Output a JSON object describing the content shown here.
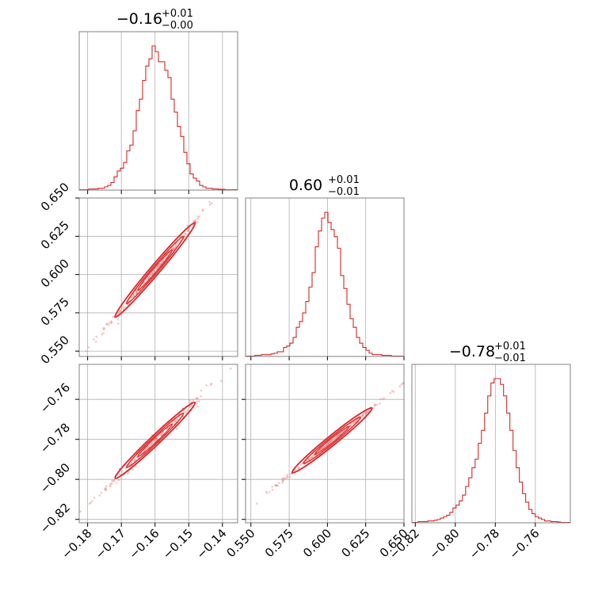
{
  "chart_data": {
    "type": "corner",
    "color": "#d62728",
    "parameters": [
      {
        "range": [
          -0.1825,
          -0.1355
        ],
        "ticks": [
          -0.18,
          -0.17,
          -0.16,
          -0.15,
          -0.14
        ],
        "tick_labels": [
          "−0.18",
          "−0.17",
          "−0.16",
          "−0.15",
          "−0.14"
        ],
        "title_value": "−0.16",
        "title_plus": "+0.01",
        "title_minus": "−0.00",
        "median": -0.16
      },
      {
        "range": [
          0.5465,
          0.65
        ],
        "ticks": [
          0.55,
          0.575,
          0.6,
          0.625,
          0.65
        ],
        "tick_labels": [
          "0.550",
          "0.575",
          "0.600",
          "0.625",
          "0.650"
        ],
        "title_value": "0.60",
        "title_plus": "+0.01",
        "title_minus": "−0.01",
        "median": 0.603
      },
      {
        "range": [
          -0.8217,
          -0.7425
        ],
        "ticks": [
          -0.82,
          -0.8,
          -0.78,
          -0.76
        ],
        "tick_labels": [
          "−0.82",
          "−0.80",
          "−0.78",
          "−0.76"
        ],
        "title_value": "−0.78",
        "title_plus": "+0.01",
        "title_minus": "−0.01",
        "median": -0.7805
      }
    ],
    "histograms": [
      {
        "bin_start": -0.1825,
        "bin_width": 0.00094,
        "counts": [
          0,
          0,
          0,
          0.5,
          0.5,
          0.5,
          1,
          1,
          2,
          3,
          5,
          9,
          13,
          15,
          19,
          27,
          31,
          41,
          55,
          63,
          76,
          86,
          91,
          100,
          96,
          89,
          89,
          83,
          78,
          63,
          54,
          44,
          37,
          26,
          18,
          11,
          8,
          6,
          3,
          2,
          1,
          1,
          0.5,
          0.5,
          0.3,
          0.3,
          0,
          0,
          0,
          0
        ]
      },
      {
        "bin_start": 0.5465,
        "bin_width": 0.00207,
        "counts": [
          0,
          0,
          0,
          0.5,
          0.5,
          1,
          1,
          1,
          1.5,
          2,
          3,
          3,
          6,
          7,
          9,
          13,
          20,
          24,
          30,
          38,
          48,
          58,
          76,
          87,
          96,
          100,
          93,
          88,
          83,
          75,
          56,
          47,
          36,
          26,
          20,
          13,
          9,
          6,
          4,
          2,
          1,
          1,
          1,
          0.5,
          0.5,
          0.5,
          0,
          0,
          0,
          0
        ]
      },
      {
        "bin_start": -0.8217,
        "bin_width": 0.00158,
        "counts": [
          0,
          0,
          0.5,
          0.5,
          0.5,
          1,
          1,
          1.5,
          2,
          3,
          4,
          5,
          7,
          10,
          12,
          15,
          19,
          25,
          31,
          38,
          44,
          55,
          64,
          76,
          88,
          97,
          100,
          100,
          96,
          88,
          76,
          64,
          50,
          38,
          28,
          20,
          14,
          9,
          6,
          4,
          3,
          2,
          1,
          1,
          0.5,
          0.5,
          0.3,
          0,
          0,
          0
        ]
      }
    ],
    "scatter_2d": [
      {
        "x_param": 0,
        "y_param": 1,
        "slope": 2.6,
        "spread": 0.0016
      },
      {
        "x_param": 0,
        "y_param": 2,
        "slope": 1.6,
        "spread": 0.0016
      },
      {
        "x_param": 1,
        "y_param": 2,
        "slope": 0.62,
        "spread": 0.0006
      }
    ],
    "grid": true
  }
}
